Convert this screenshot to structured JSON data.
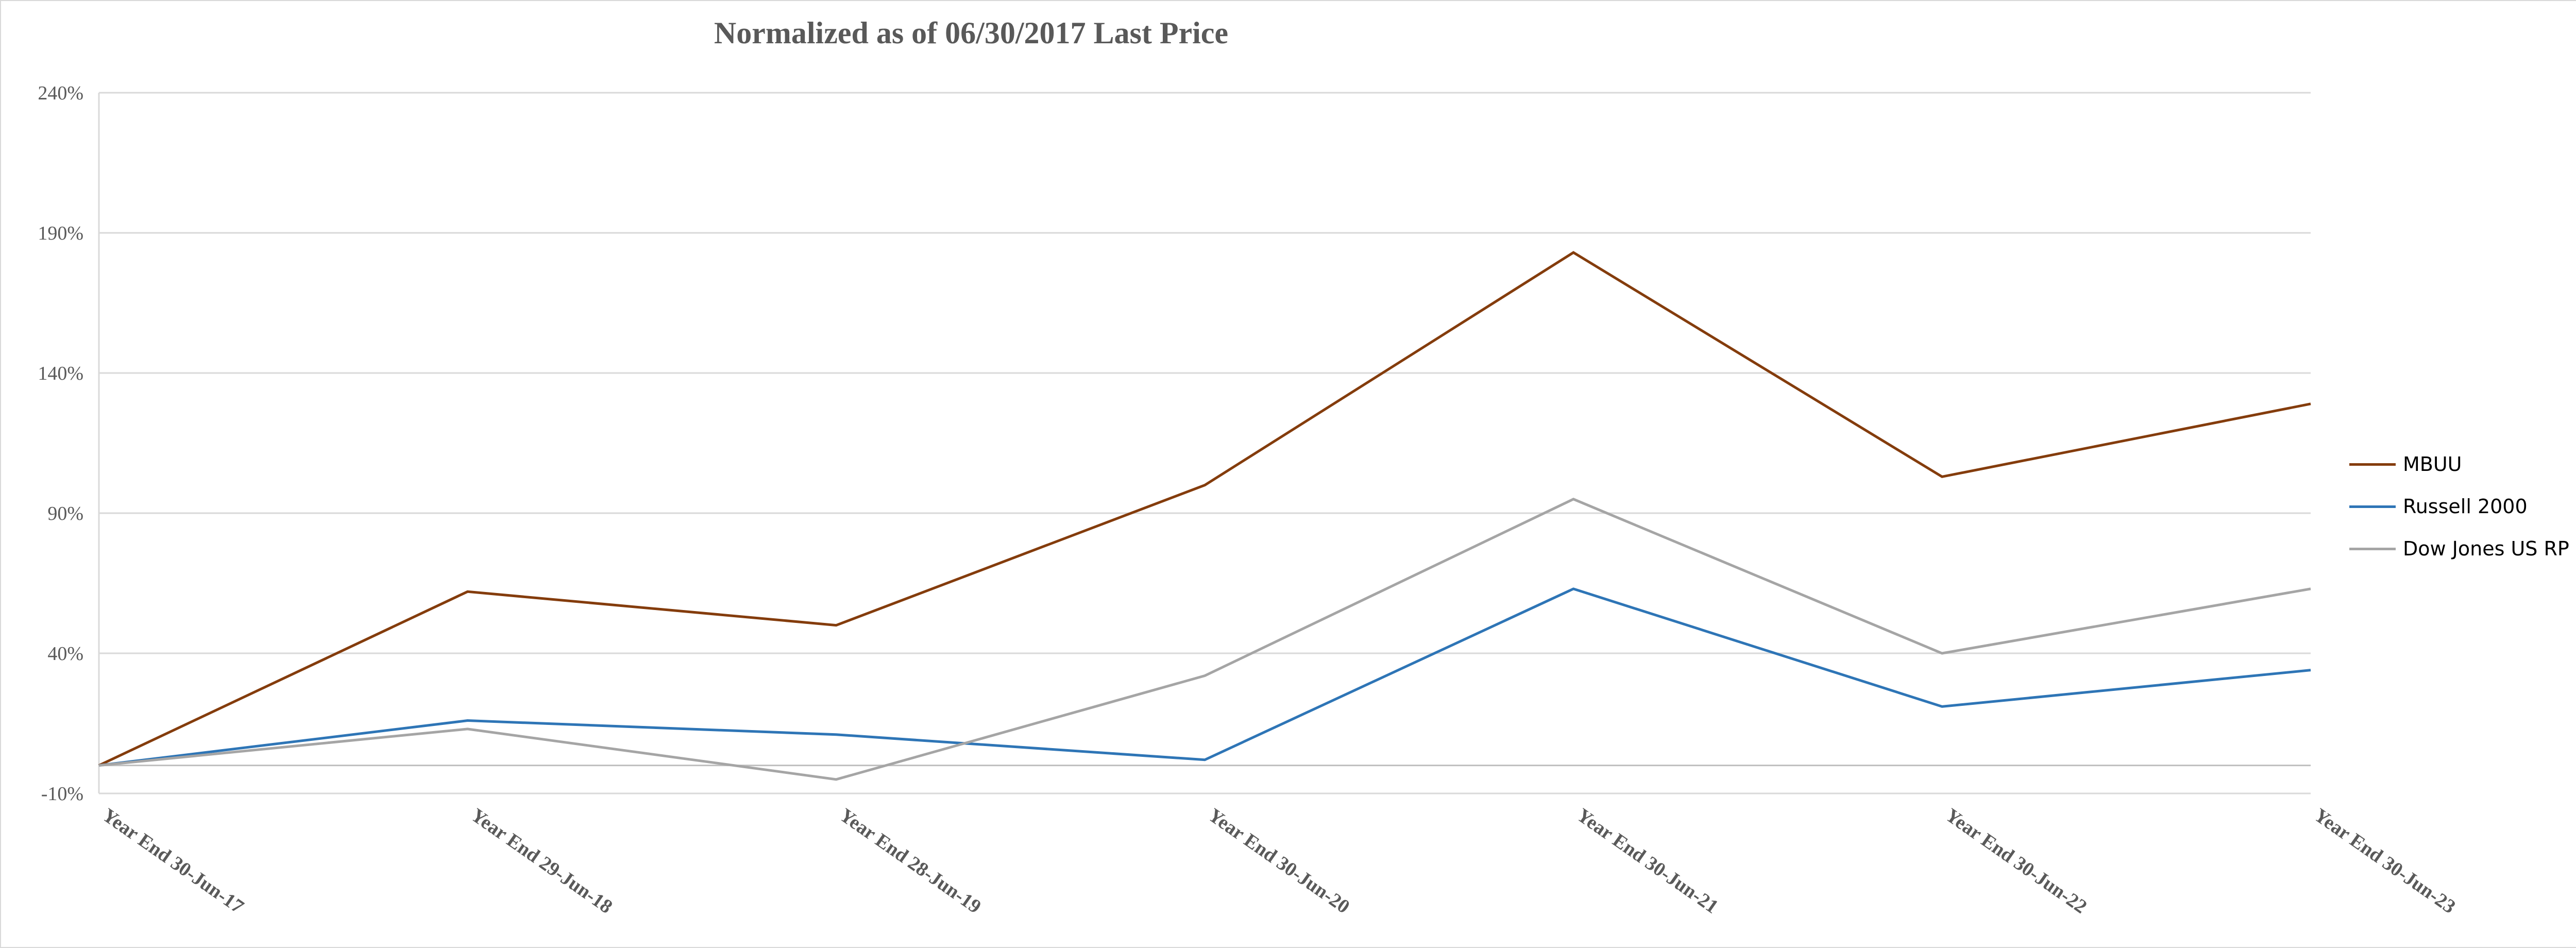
{
  "chart_data": {
    "type": "line",
    "title": "Normalized as of 06/30/2017 Last Price",
    "xlabel": "",
    "ylabel": "",
    "categories": [
      "Year End 30-Jun-17",
      "Year End 29-Jun-18",
      "Year End 28-Jun-19",
      "Year End 30-Jun-20",
      "Year End 30-Jun-21",
      "Year End 30-Jun-22",
      "Year End 30-Jun-23"
    ],
    "ylim": [
      -10,
      240
    ],
    "yticks": [
      -10,
      40,
      90,
      140,
      190,
      240
    ],
    "ytick_labels": [
      "-10%",
      "40%",
      "90%",
      "140%",
      "190%",
      "240%"
    ],
    "grid": true,
    "legend_position": "right",
    "series": [
      {
        "name": "MBUU",
        "color": "#843c0c",
        "values": [
          0,
          62,
          50,
          100,
          183,
          103,
          129
        ]
      },
      {
        "name": "Russell 2000",
        "color": "#2e75b6",
        "values": [
          0,
          16,
          11,
          2,
          63,
          21,
          34
        ]
      },
      {
        "name": "Dow Jones US RP",
        "color": "#a5a5a5",
        "values": [
          0,
          13,
          -5,
          32,
          95,
          40,
          63
        ]
      }
    ]
  }
}
